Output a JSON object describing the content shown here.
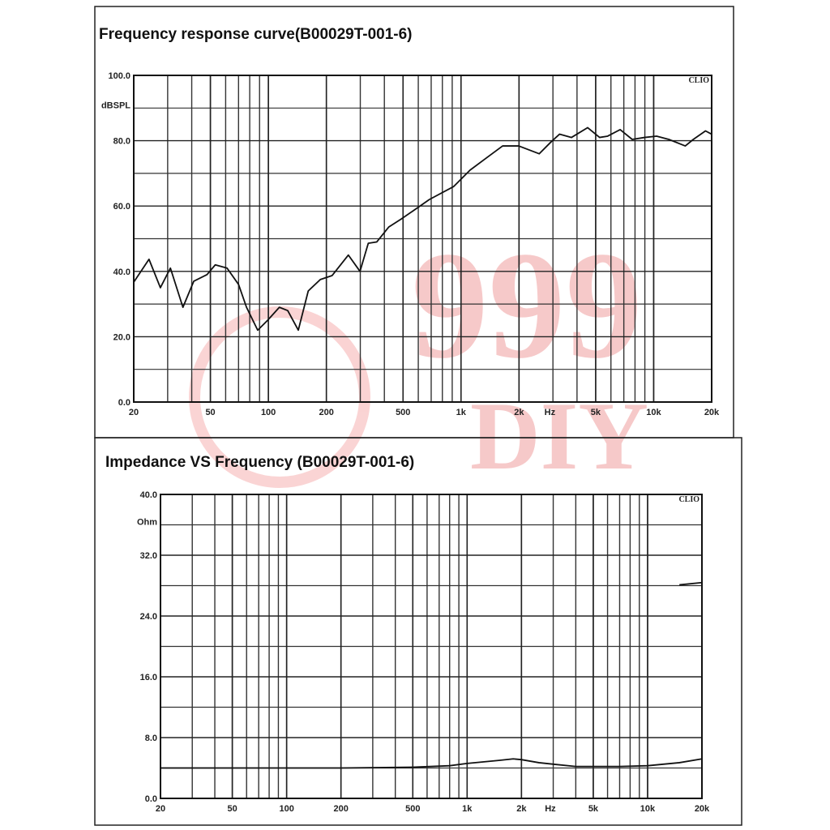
{
  "chart_data": [
    {
      "type": "line",
      "title": "Frequency response curve(B00029T-001-6)",
      "y_unit": "dBSPL",
      "x_unit": "Hz",
      "brand": "CLIO",
      "xscale": "log",
      "xlim": [
        20,
        20000
      ],
      "xticks": [
        20,
        50,
        100,
        200,
        500,
        {
          "value": 1000,
          "label": "1k"
        },
        {
          "value": 2000,
          "label": "2k"
        },
        {
          "value": 5000,
          "label": "5k"
        },
        {
          "value": 10000,
          "label": "10k"
        },
        {
          "value": 20000,
          "label": "20k"
        }
      ],
      "ylim": [
        0,
        100
      ],
      "yticks": [
        {
          "value": 0,
          "label": "0.0"
        },
        {
          "value": 20,
          "label": "20.0"
        },
        {
          "value": 40,
          "label": "40.0"
        },
        {
          "value": 60,
          "label": "60.0"
        },
        {
          "value": 80,
          "label": "80.0"
        },
        {
          "value": 100,
          "label": "100.0"
        }
      ],
      "grid": true,
      "x": [
        20,
        24,
        27.5,
        31,
        36,
        41,
        48,
        53,
        61,
        70,
        77,
        88,
        99,
        114,
        126,
        143,
        161,
        186,
        214,
        260,
        299,
        330,
        365,
        422,
        488,
        563,
        685,
        917,
        1114,
        1353,
        1644,
        1993,
        2545,
        2940,
        3245,
        3745,
        4540,
        5240,
        5770,
        6700,
        7740,
        8980,
        10360,
        11990,
        14590,
        16060,
        18580,
        20000
      ],
      "series": [
        {
          "color": "#111111",
          "values": [
            36.7,
            43.7,
            35,
            41,
            29,
            37,
            39,
            42,
            41,
            36,
            29,
            22,
            25,
            29,
            28,
            22,
            34,
            37.5,
            38.7,
            45,
            40,
            48.6,
            49,
            53.6,
            56,
            58.5,
            62,
            66,
            71,
            74.7,
            78.4,
            78.4,
            76,
            79.7,
            82,
            81,
            84,
            81,
            81.4,
            83.4,
            80.4,
            81,
            81.4,
            80.4,
            78.4,
            80.4,
            83,
            82
          ]
        }
      ]
    },
    {
      "type": "line",
      "title": "Impedance VS Frequency (B00029T-001-6)",
      "y_unit": "Ohm",
      "x_unit": "Hz",
      "brand": "CLIO",
      "xscale": "log",
      "xlim": [
        20,
        20000
      ],
      "xticks": [
        20,
        50,
        100,
        200,
        500,
        {
          "value": 1000,
          "label": "1k"
        },
        {
          "value": 2000,
          "label": "2k"
        },
        {
          "value": 5000,
          "label": "5k"
        },
        {
          "value": 10000,
          "label": "10k"
        },
        {
          "value": 20000,
          "label": "20k"
        }
      ],
      "ylim": [
        0,
        40
      ],
      "yticks": [
        {
          "value": 0,
          "label": "0.0"
        },
        {
          "value": 8,
          "label": "8.0"
        },
        {
          "value": 16,
          "label": "16.0"
        },
        {
          "value": 24,
          "label": "24.0"
        },
        {
          "value": 32,
          "label": "32.0"
        },
        {
          "value": 40,
          "label": "40.0"
        }
      ],
      "grid": true,
      "x": [
        20,
        50,
        100,
        200,
        500,
        800,
        1000,
        1500,
        1800,
        2000,
        2500,
        3000,
        4000,
        5000,
        7000,
        10000,
        15000,
        20000
      ],
      "series": [
        {
          "color": "#111111",
          "values": [
            4,
            4,
            4,
            4,
            4.1,
            4.3,
            4.6,
            5.0,
            5.2,
            5.1,
            4.7,
            4.5,
            4.2,
            4.2,
            4.2,
            4.3,
            4.7,
            5.2
          ]
        },
        {
          "color": "#111111",
          "values": [
            null,
            null,
            null,
            null,
            null,
            null,
            null,
            null,
            null,
            null,
            null,
            null,
            null,
            null,
            null,
            null,
            28.1,
            28.4
          ]
        }
      ]
    }
  ],
  "watermark": [
    "999",
    "DIY"
  ]
}
